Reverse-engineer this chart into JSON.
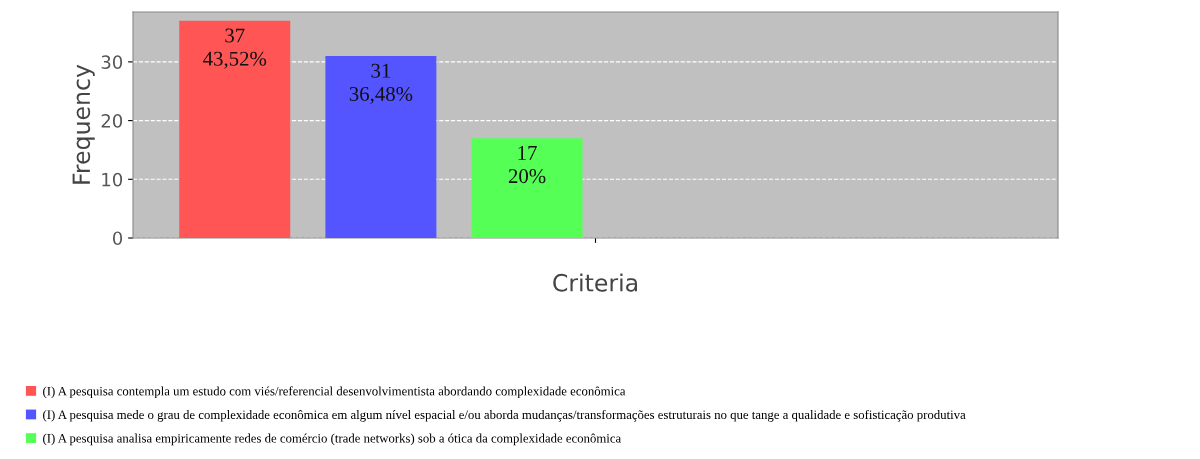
{
  "chart_data": {
    "type": "bar",
    "xlabel": "Criteria",
    "ylabel": "Frequency",
    "categories": [
      null
    ],
    "series": [
      {
        "name": "(I) A pesquisa contempla um estudo com viés/referencial desenvolvimentista abordando complexidade econômica",
        "color": "#ff5555",
        "values": [
          37
        ],
        "value_labels": [
          "37\n43,52%"
        ]
      },
      {
        "name": "(I) A pesquisa mede o grau de complexidade econômica em algum nível espacial e/ou aborda mudanças/transformações estruturais no que tange a qualidade e sofisticação produtiva",
        "color": "#5555ff",
        "values": [
          31
        ],
        "value_labels": [
          "31\n36,48%"
        ]
      },
      {
        "name": "(I) A pesquisa analisa empiricamente redes de comércio (trade networks) sob a ótica da complexidade econômica",
        "color": "#55ff55",
        "values": [
          17
        ],
        "value_labels": [
          "17\n20%"
        ]
      }
    ],
    "ylim": [
      0,
      38.5
    ],
    "yticks": [
      0,
      10,
      20,
      30
    ],
    "grid": "y",
    "legend": "bottom",
    "tick_labels": "y"
  }
}
